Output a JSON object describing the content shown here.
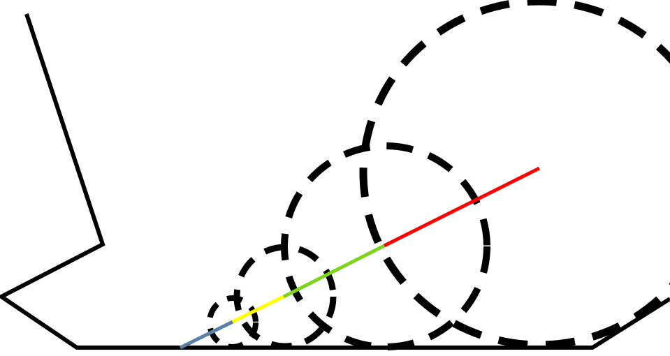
{
  "diagram": {
    "background": "#ffffff",
    "outline_color": "#000000",
    "circle_style": "dashed",
    "circle_count": 4,
    "ray_segment_colors": [
      "#5b7fa6",
      "#ffff00",
      "#7ed321",
      "#ff0000"
    ]
  }
}
